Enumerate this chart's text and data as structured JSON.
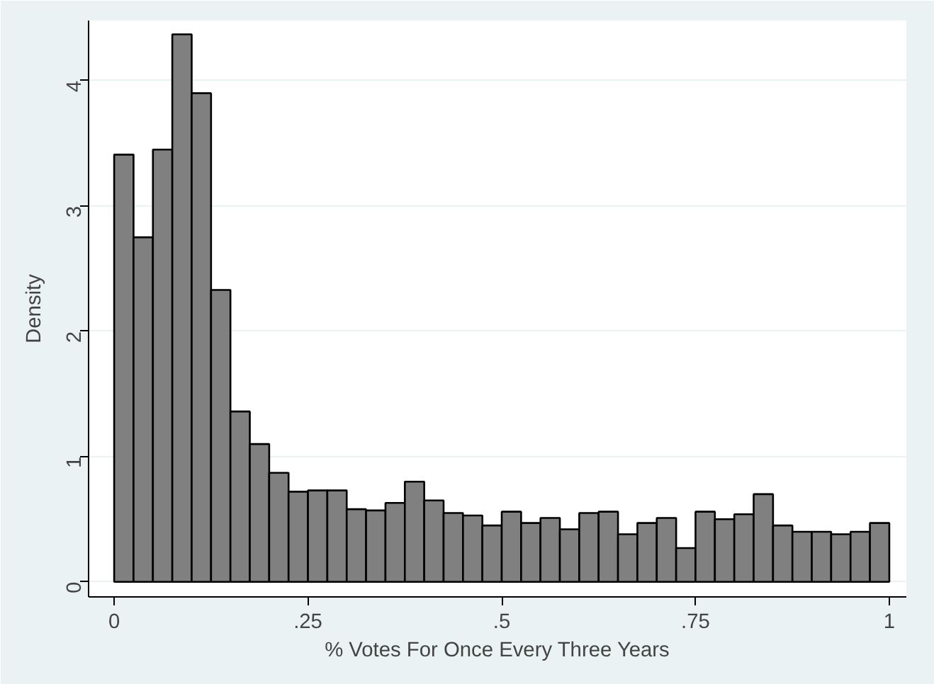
{
  "chart_data": {
    "type": "histogram",
    "xlabel": "% Votes For Once Every Three Years",
    "ylabel": "Density",
    "bins": [
      0,
      0.025,
      0.05,
      0.075,
      0.1,
      0.125,
      0.15,
      0.175,
      0.2,
      0.225,
      0.25,
      0.275,
      0.3,
      0.325,
      0.35,
      0.375,
      0.4,
      0.425,
      0.45,
      0.475,
      0.5,
      0.525,
      0.55,
      0.575,
      0.6,
      0.625,
      0.65,
      0.675,
      0.7,
      0.725,
      0.75,
      0.775,
      0.8,
      0.825,
      0.85,
      0.875,
      0.9,
      0.925,
      0.95,
      0.975,
      1
    ],
    "values": [
      3.41,
      2.75,
      3.45,
      4.37,
      3.9,
      2.33,
      1.36,
      1.1,
      0.87,
      0.72,
      0.73,
      0.73,
      0.58,
      0.57,
      0.63,
      0.8,
      0.65,
      0.55,
      0.53,
      0.45,
      0.56,
      0.47,
      0.51,
      0.42,
      0.55,
      0.56,
      0.38,
      0.47,
      0.51,
      0.27,
      0.56,
      0.5,
      0.54,
      0.7,
      0.45,
      0.4,
      0.4,
      0.38,
      0.4,
      0.47
    ],
    "color": "#808080",
    "xlim": [
      -0.033,
      1.022
    ],
    "ylim": [
      -0.12,
      4.48
    ],
    "xticks": [
      {
        "value": 0,
        "label": "0"
      },
      {
        "value": 0.25,
        "label": ".25"
      },
      {
        "value": 0.5,
        "label": ".5"
      },
      {
        "value": 0.75,
        "label": ".75"
      },
      {
        "value": 1,
        "label": "1"
      }
    ],
    "yticks": [
      0,
      1,
      2,
      3,
      4
    ],
    "grid": "y"
  }
}
